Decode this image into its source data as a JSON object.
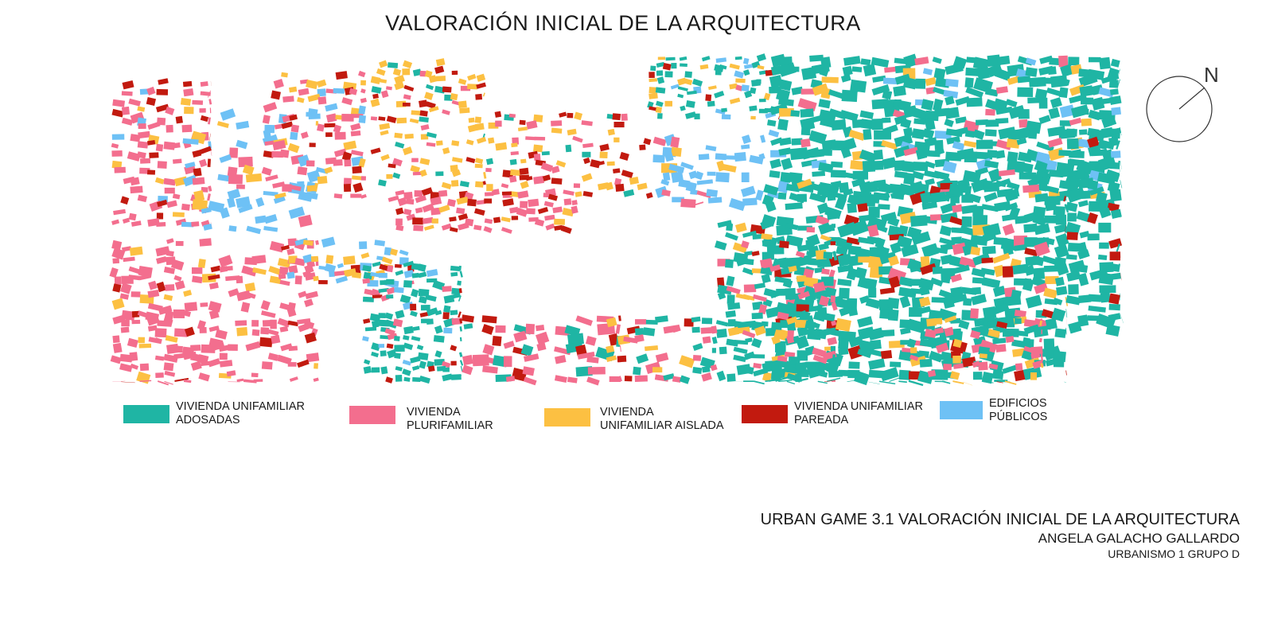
{
  "title": "VALORACIÓN INICIAL DE LA ARQUITECTURA",
  "north_label": "N",
  "legend": [
    {
      "line1": "VIVIENDA UNIFAMILIAR",
      "line2": "ADOSADAS",
      "color": "#1fb5a4"
    },
    {
      "line1": "VIVIENDA",
      "line2": "PLURIFAMILIAR",
      "color": "#f36e8e"
    },
    {
      "line1": "VIVIENDA",
      "line2": "UNIFAMILIAR AISLADA",
      "color": "#fcc042"
    },
    {
      "line1": "VIVIENDA UNIFAMILIAR",
      "line2": "PAREADA",
      "color": "#c21a0f"
    },
    {
      "line1": "EDIFICIOS",
      "line2": "PÚBLICOS",
      "color": "#6ec1f5"
    }
  ],
  "credits": {
    "line1": "URBAN GAME 3.1 VALORACIÓN INICIAL DE LA ARQUITECTURA",
    "line2": "ANGELA GALACHO GALLARDO",
    "line3": "URBANISMO 1 GRUPO D"
  }
}
